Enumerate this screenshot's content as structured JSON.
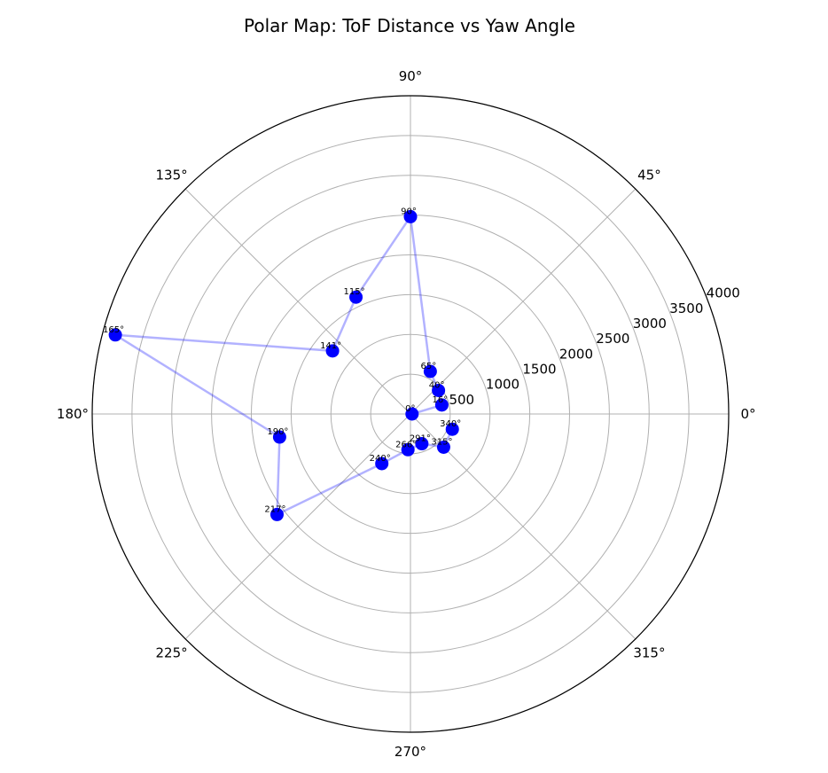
{
  "chart_data": {
    "type": "scatter",
    "projection": "polar",
    "title": "Polar Map: ToF Distance vs Yaw Angle",
    "rmax": 4000,
    "rticks": [
      500,
      1000,
      1500,
      2000,
      2500,
      3000,
      3500,
      4000
    ],
    "rtick_labels": [
      "500",
      "1000",
      "1500",
      "2000",
      "2500",
      "3000",
      "3500",
      "4000"
    ],
    "angle_ticks_deg": [
      0,
      45,
      90,
      135,
      180,
      225,
      270,
      315
    ],
    "angle_tick_labels": [
      "0°",
      "45°",
      "90°",
      "135°",
      "180°",
      "225°",
      "270°",
      "315°"
    ],
    "grid": true,
    "line_color": "#0000ff",
    "marker_color": "#0000ff",
    "points": [
      {
        "label": "0°",
        "angle": 0,
        "r": 20
      },
      {
        "label": "16°",
        "angle": 16,
        "r": 410
      },
      {
        "label": "40°",
        "angle": 40,
        "r": 460
      },
      {
        "label": "65°",
        "angle": 65,
        "r": 590
      },
      {
        "label": "90°",
        "angle": 90,
        "r": 2480
      },
      {
        "label": "115°",
        "angle": 115,
        "r": 1620
      },
      {
        "label": "141°",
        "angle": 141,
        "r": 1260
      },
      {
        "label": "165°",
        "angle": 165,
        "r": 3840
      },
      {
        "label": "190°",
        "angle": 190,
        "r": 1670
      },
      {
        "label": "217°",
        "angle": 217,
        "r": 2100
      },
      {
        "label": "240°",
        "angle": 240,
        "r": 720
      },
      {
        "label": "266°",
        "angle": 266,
        "r": 450
      },
      {
        "label": "291°",
        "angle": 291,
        "r": 400
      },
      {
        "label": "315°",
        "angle": 315,
        "r": 590
      },
      {
        "label": "340°",
        "angle": 340,
        "r": 560
      }
    ]
  }
}
